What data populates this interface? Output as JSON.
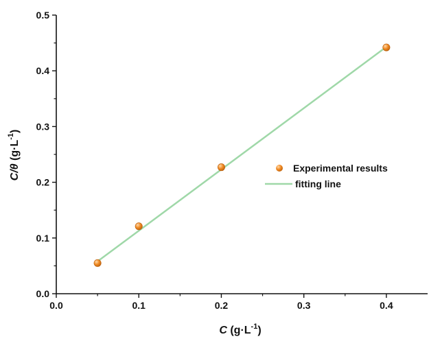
{
  "chart_data": {
    "type": "scatter",
    "xlabel_main": "C",
    "xlabel_unit": " (g·L",
    "xlabel_sup": "-1",
    "xlabel_close": ")",
    "ylabel_main": "C/θ",
    "ylabel_unit": " (g·L",
    "ylabel_sup": "-1",
    "ylabel_close": ")",
    "xlim": [
      0.0,
      0.45
    ],
    "ylim": [
      0.0,
      0.5
    ],
    "x_ticks": [
      "0.0",
      "0.1",
      "0.2",
      "0.3",
      "0.4"
    ],
    "y_ticks": [
      "0.0",
      "0.1",
      "0.2",
      "0.3",
      "0.4",
      "0.5"
    ],
    "grid": false,
    "legend_position": "center-right",
    "series": [
      {
        "name": "Experimental results",
        "kind": "scatter",
        "color": "#f08a24",
        "x": [
          0.05,
          0.1,
          0.2,
          0.4
        ],
        "y": [
          0.055,
          0.121,
          0.227,
          0.442
        ]
      },
      {
        "name": "fitting line",
        "kind": "line",
        "color": "#9fd8a8",
        "x": [
          0.05,
          0.4
        ],
        "y": [
          0.058,
          0.443
        ]
      }
    ]
  }
}
